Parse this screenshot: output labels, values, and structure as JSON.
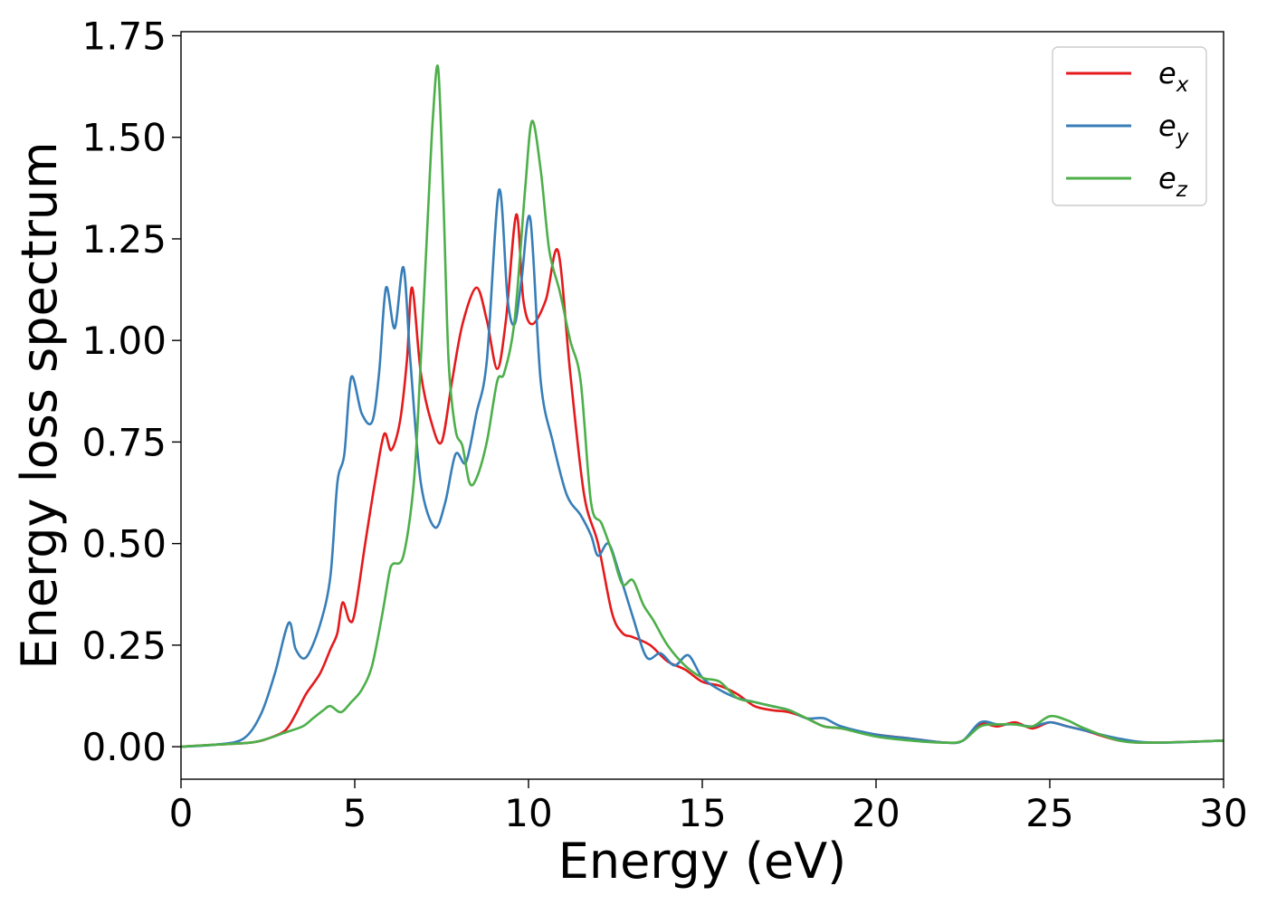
{
  "chart_data": {
    "type": "line",
    "title": "",
    "xlabel": "Energy (eV)",
    "ylabel": "Energy loss spectrum",
    "xlim": [
      0,
      30
    ],
    "ylim": [
      -0.08,
      1.76
    ],
    "xticks": [
      0,
      5,
      10,
      15,
      20,
      25,
      30
    ],
    "yticks": [
      0.0,
      0.25,
      0.5,
      0.75,
      1.0,
      1.25,
      1.5,
      1.75
    ],
    "ytick_labels": [
      "0.00",
      "0.25",
      "0.50",
      "0.75",
      "1.00",
      "1.25",
      "1.50",
      "1.75"
    ],
    "xtick_labels": [
      "0",
      "5",
      "10",
      "15",
      "20",
      "25",
      "30"
    ],
    "grid": false,
    "legend_position": "top-right",
    "series": [
      {
        "name": "e_x",
        "legend_base": "e",
        "legend_sub": "x",
        "color": "#e41a1c",
        "x": [
          0,
          1,
          2,
          2.5,
          3,
          3.3,
          3.6,
          4,
          4.3,
          4.5,
          4.65,
          4.85,
          5,
          5.3,
          5.6,
          5.85,
          6.05,
          6.3,
          6.5,
          6.65,
          6.9,
          7.2,
          7.5,
          7.8,
          8.1,
          8.5,
          8.8,
          9.1,
          9.35,
          9.65,
          9.85,
          10.1,
          10.5,
          10.85,
          11.2,
          11.6,
          12,
          12.4,
          12.7,
          13,
          13.5,
          14,
          14.5,
          15,
          15.5,
          16,
          16.5,
          17,
          17.5,
          18,
          18.5,
          19,
          20,
          21,
          22,
          22.5,
          23,
          23.5,
          24,
          24.5,
          25,
          25.5,
          26,
          27,
          28,
          30
        ],
        "y": [
          0.0,
          0.005,
          0.01,
          0.02,
          0.04,
          0.08,
          0.13,
          0.18,
          0.24,
          0.28,
          0.355,
          0.31,
          0.33,
          0.5,
          0.66,
          0.77,
          0.73,
          0.8,
          0.95,
          1.13,
          0.92,
          0.8,
          0.75,
          0.9,
          1.04,
          1.13,
          1.05,
          0.93,
          1.05,
          1.31,
          1.1,
          1.04,
          1.1,
          1.22,
          0.92,
          0.62,
          0.5,
          0.33,
          0.28,
          0.27,
          0.25,
          0.21,
          0.19,
          0.16,
          0.15,
          0.13,
          0.1,
          0.09,
          0.085,
          0.07,
          0.05,
          0.045,
          0.03,
          0.02,
          0.01,
          0.015,
          0.055,
          0.05,
          0.06,
          0.045,
          0.06,
          0.05,
          0.04,
          0.015,
          0.01,
          0.015
        ]
      },
      {
        "name": "e_y",
        "legend_base": "e",
        "legend_sub": "y",
        "color": "#377eb8",
        "x": [
          0,
          1,
          1.8,
          2.3,
          2.7,
          3.1,
          3.3,
          3.6,
          4.0,
          4.3,
          4.5,
          4.7,
          4.9,
          5.2,
          5.5,
          5.7,
          5.9,
          6.15,
          6.4,
          6.6,
          6.9,
          7.3,
          7.6,
          7.9,
          8.2,
          8.5,
          8.8,
          9.15,
          9.4,
          9.6,
          9.8,
          10.05,
          10.35,
          10.7,
          11.1,
          11.5,
          11.8,
          12.0,
          12.3,
          12.6,
          13.0,
          13.4,
          13.8,
          14.2,
          14.6,
          15.0,
          15.5,
          16.0,
          16.5,
          17.0,
          17.5,
          18.0,
          18.5,
          19,
          20,
          21,
          22,
          22.5,
          23,
          23.5,
          24,
          24.5,
          25,
          25.5,
          26,
          27,
          28,
          30
        ],
        "y": [
          0.0,
          0.005,
          0.02,
          0.08,
          0.18,
          0.305,
          0.24,
          0.22,
          0.3,
          0.42,
          0.65,
          0.72,
          0.91,
          0.82,
          0.8,
          0.92,
          1.13,
          1.03,
          1.18,
          0.95,
          0.65,
          0.54,
          0.6,
          0.72,
          0.7,
          0.82,
          0.95,
          1.37,
          1.1,
          1.04,
          1.15,
          1.3,
          0.9,
          0.75,
          0.62,
          0.57,
          0.52,
          0.47,
          0.5,
          0.43,
          0.32,
          0.22,
          0.23,
          0.2,
          0.225,
          0.17,
          0.14,
          0.12,
          0.11,
          0.1,
          0.09,
          0.07,
          0.07,
          0.05,
          0.03,
          0.02,
          0.01,
          0.015,
          0.06,
          0.055,
          0.055,
          0.05,
          0.06,
          0.05,
          0.04,
          0.02,
          0.01,
          0.015
        ]
      },
      {
        "name": "e_z",
        "legend_base": "e",
        "legend_sub": "z",
        "color": "#4daf4a",
        "x": [
          0,
          1,
          2,
          2.5,
          3,
          3.5,
          3.8,
          4.1,
          4.3,
          4.6,
          4.9,
          5.2,
          5.5,
          5.8,
          6.0,
          6.1,
          6.4,
          6.7,
          6.9,
          7.1,
          7.25,
          7.4,
          7.55,
          7.7,
          7.9,
          8.1,
          8.3,
          8.5,
          8.8,
          9.1,
          9.3,
          9.6,
          9.9,
          10.1,
          10.35,
          10.6,
          10.9,
          11.2,
          11.5,
          11.8,
          12.1,
          12.4,
          12.7,
          13.0,
          13.3,
          13.6,
          14.0,
          14.5,
          15.0,
          15.5,
          16.0,
          16.5,
          17.0,
          17.5,
          18.0,
          18.5,
          19,
          20,
          21,
          22,
          22.5,
          23,
          23.5,
          24,
          24.5,
          25,
          25.5,
          26,
          27,
          28,
          30
        ],
        "y": [
          0.0,
          0.005,
          0.01,
          0.02,
          0.035,
          0.05,
          0.07,
          0.09,
          0.1,
          0.085,
          0.11,
          0.14,
          0.2,
          0.33,
          0.43,
          0.45,
          0.47,
          0.65,
          0.95,
          1.3,
          1.55,
          1.67,
          1.35,
          0.95,
          0.78,
          0.74,
          0.65,
          0.66,
          0.75,
          0.9,
          0.92,
          1.05,
          1.37,
          1.54,
          1.42,
          1.22,
          1.12,
          1.0,
          0.9,
          0.6,
          0.55,
          0.48,
          0.4,
          0.41,
          0.35,
          0.31,
          0.25,
          0.2,
          0.17,
          0.16,
          0.12,
          0.11,
          0.1,
          0.09,
          0.07,
          0.05,
          0.045,
          0.025,
          0.015,
          0.01,
          0.015,
          0.05,
          0.055,
          0.055,
          0.05,
          0.075,
          0.065,
          0.045,
          0.015,
          0.01,
          0.015
        ]
      }
    ]
  }
}
